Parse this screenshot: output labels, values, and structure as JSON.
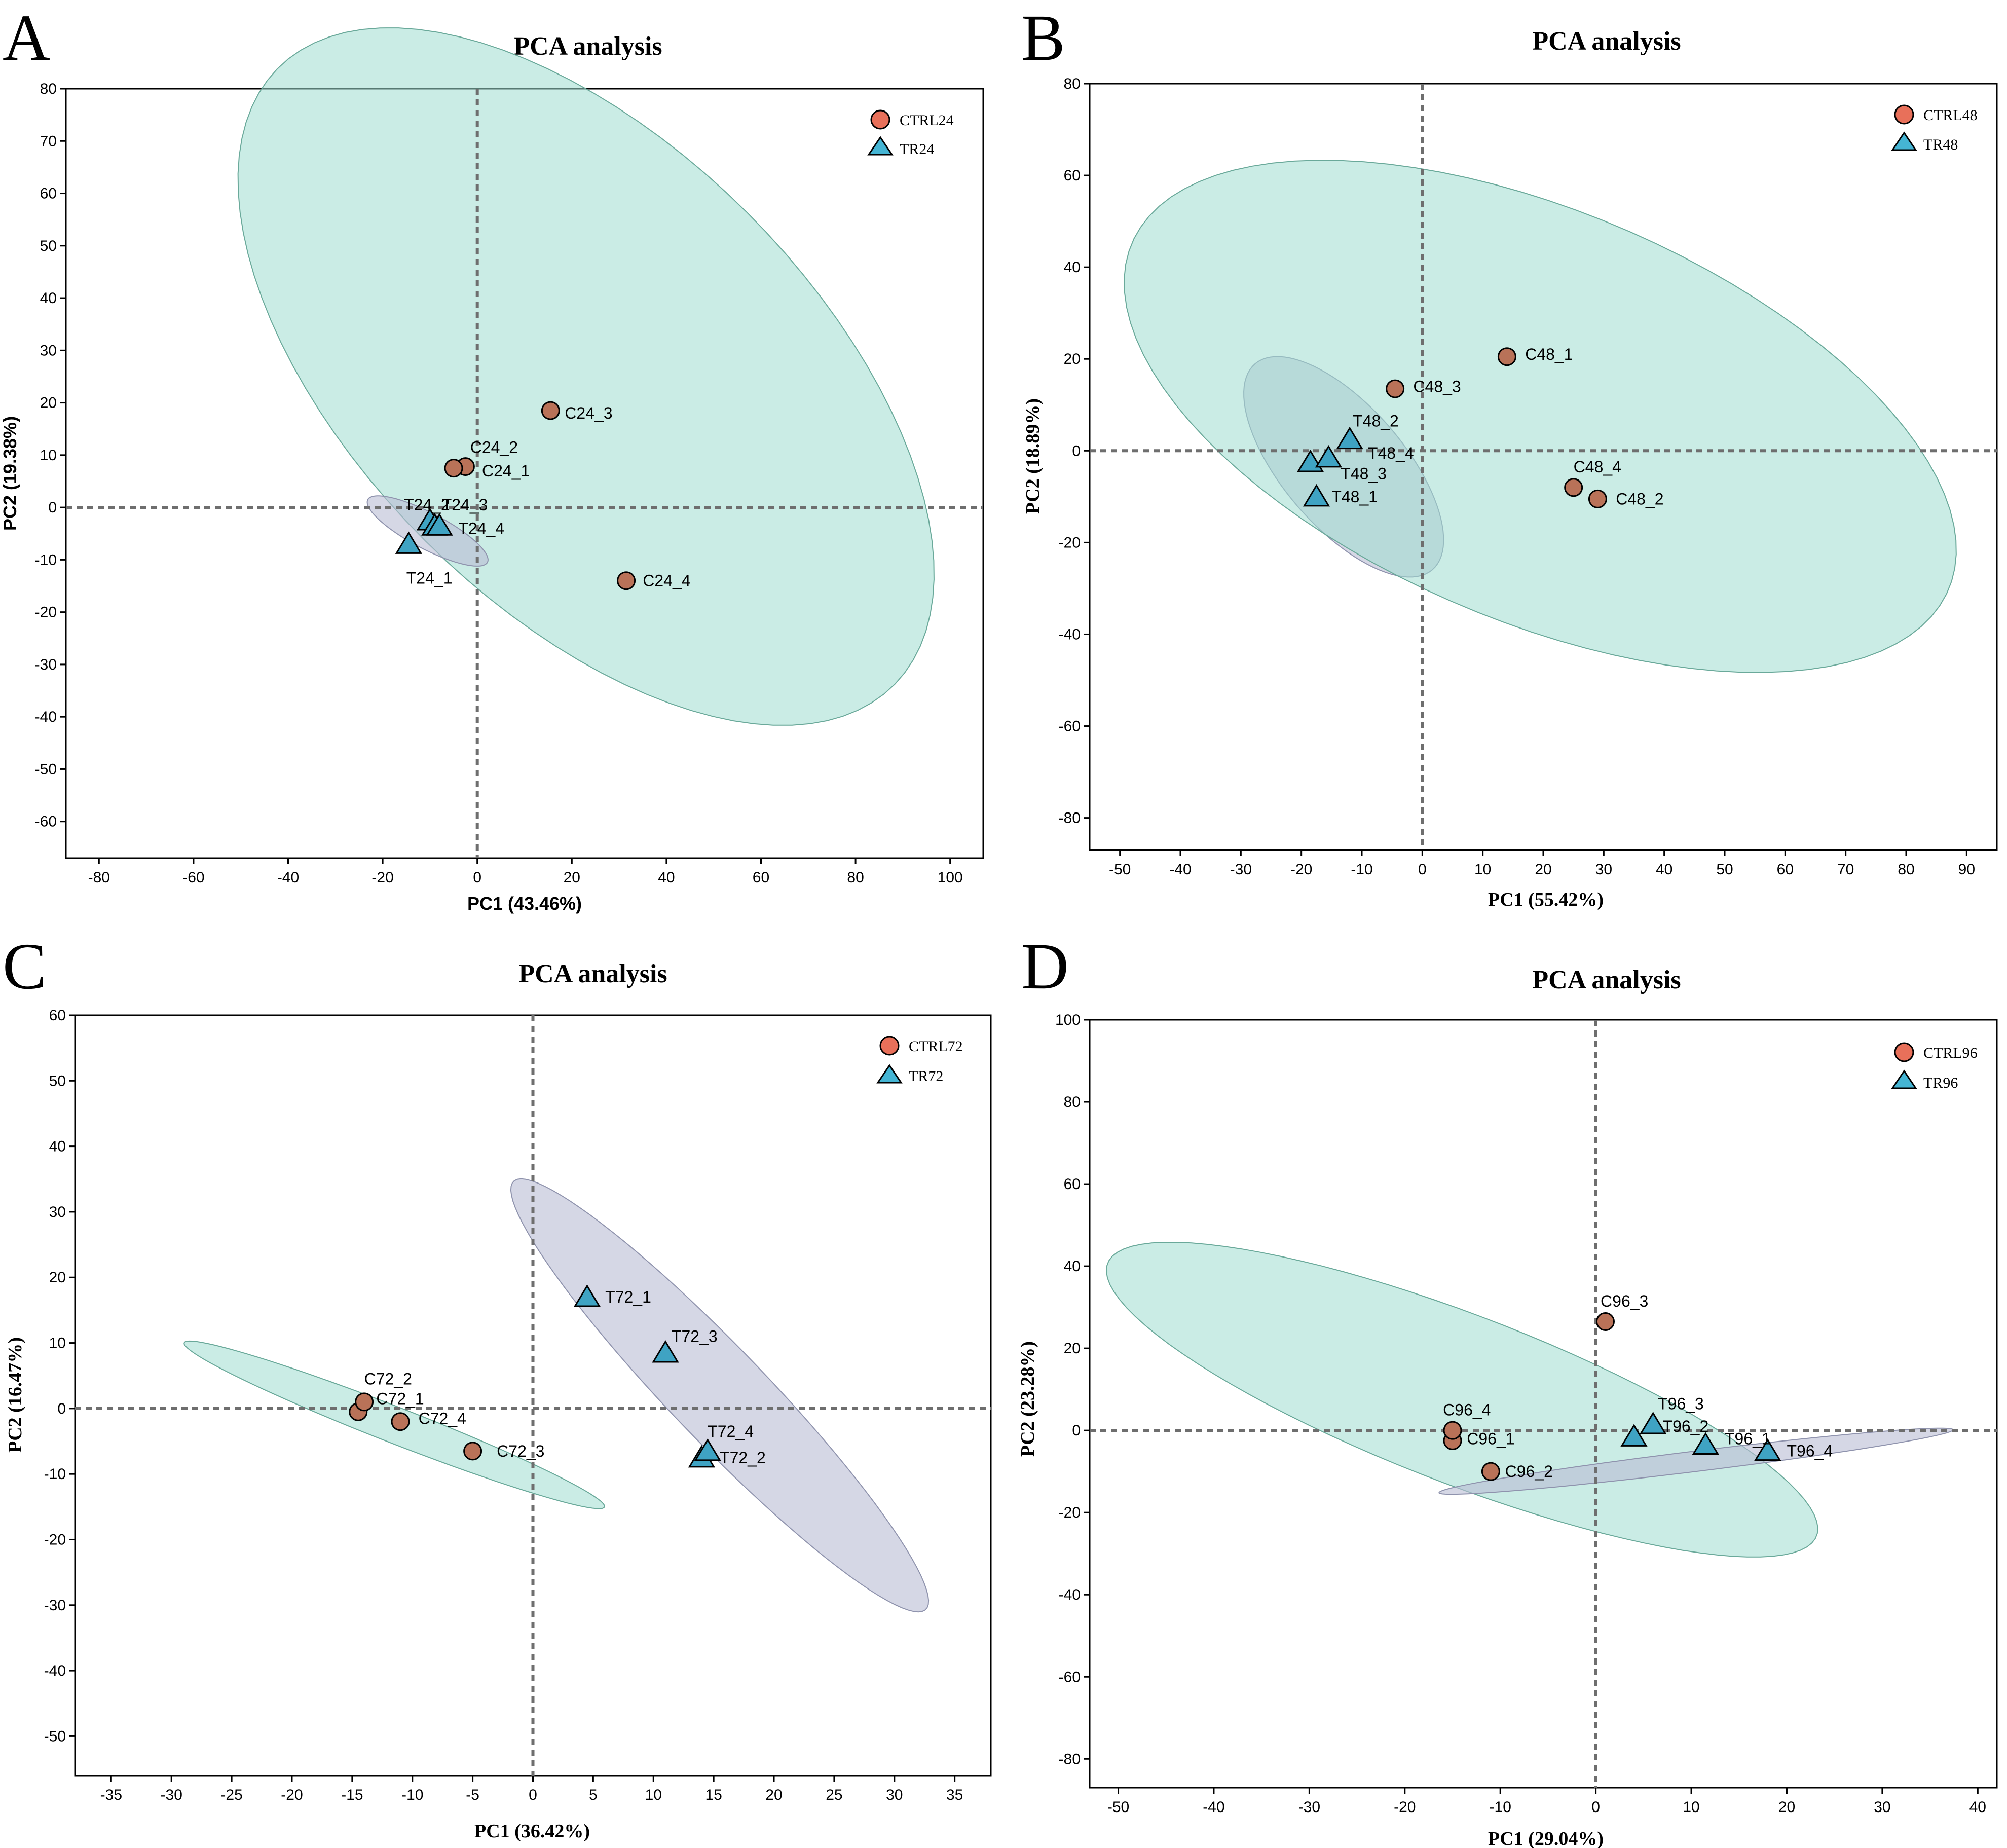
{
  "colors": {
    "ctrl_point": "#b97258",
    "tr_point": "#3fa3c3",
    "legend_ctrl": "#e8705a",
    "legend_tr": "#45b5d4",
    "ctrl_ellipse": "#9fdccf",
    "tr_ellipse": "#b9bcd3"
  },
  "chart_data": [
    {
      "panel": "A",
      "type": "scatter",
      "title": "PCA analysis",
      "xlabel": "PC1 (43.46%)",
      "ylabel": "PC2 (19.38%)",
      "xlim": [
        -87,
        107
      ],
      "ylim": [
        -67,
        80
      ],
      "xticks": [
        -80,
        -60,
        -40,
        -20,
        0,
        20,
        40,
        60,
        80,
        100
      ],
      "yticks": [
        80,
        70,
        60,
        50,
        40,
        30,
        20,
        10,
        0,
        -10,
        -20,
        -30,
        -40,
        -50,
        -60
      ],
      "legend": "top-right",
      "series": [
        {
          "name": "CTRL24",
          "marker": "circle",
          "points": [
            {
              "label": "C24_1",
              "x": -2.5,
              "y": 7.8
            },
            {
              "label": "C24_2",
              "x": -5,
              "y": 7.5
            },
            {
              "label": "C24_3",
              "x": 15.5,
              "y": 18.5
            },
            {
              "label": "C24_4",
              "x": 31.5,
              "y": -14
            }
          ]
        },
        {
          "name": "TR24",
          "marker": "triangle",
          "points": [
            {
              "label": "T24_1",
              "x": -14.5,
              "y": -7
            },
            {
              "label": "T24_2",
              "x": -10,
              "y": -2.5
            },
            {
              "label": "T24_3",
              "x": -9,
              "y": -3.5
            },
            {
              "label": "T24_4",
              "x": -8,
              "y": -3.5
            }
          ]
        }
      ],
      "ellipses": [
        {
          "group": "CTRL24",
          "cx": 23,
          "cy": 25,
          "rx": 88,
          "ry": 46,
          "angle_deg": -40
        },
        {
          "group": "TR24",
          "cx": -10.5,
          "cy": -4.5,
          "rx": 14,
          "ry": 3.5,
          "angle_deg": -25
        }
      ],
      "annotations": [
        {
          "text": "C24_1",
          "x": 1,
          "y": 7
        },
        {
          "text": "C24_2",
          "x": -1.5,
          "y": 11.5
        },
        {
          "text": "C24_3",
          "x": 18.5,
          "y": 18
        },
        {
          "text": "C24_4",
          "x": 35,
          "y": -14
        },
        {
          "text": "T24_1",
          "x": -15,
          "y": -13.5
        },
        {
          "text": "T24_2",
          "x": -15.5,
          "y": 0.5
        },
        {
          "text": "T24_3",
          "x": -7.5,
          "y": 0.5
        },
        {
          "text": "T24_4",
          "x": -4,
          "y": -4
        }
      ]
    },
    {
      "panel": "B",
      "type": "scatter",
      "title": "PCA analysis",
      "xlabel": "PC1 (55.42%)",
      "ylabel": "PC2 (18.89%)",
      "xlim": [
        -55,
        95
      ],
      "ylim": [
        -87,
        80
      ],
      "xticks": [
        -50,
        -40,
        -30,
        -20,
        -10,
        0,
        10,
        20,
        30,
        40,
        50,
        60,
        70,
        80,
        90
      ],
      "yticks": [
        80,
        60,
        40,
        20,
        0,
        -20,
        -40,
        -60,
        -80
      ],
      "legend": "top-right",
      "series": [
        {
          "name": "CTRL48",
          "marker": "circle",
          "points": [
            {
              "label": "C48_1",
              "x": 14,
              "y": 20.5
            },
            {
              "label": "C48_2",
              "x": 29,
              "y": -10.5
            },
            {
              "label": "C48_3",
              "x": -4.5,
              "y": 13.5
            },
            {
              "label": "C48_4",
              "x": 25,
              "y": -8
            }
          ]
        },
        {
          "name": "TR48",
          "marker": "triangle",
          "points": [
            {
              "label": "T48_1",
              "x": -17.5,
              "y": -10
            },
            {
              "label": "T48_2",
              "x": -12,
              "y": 2.5
            },
            {
              "label": "T48_3",
              "x": -18.5,
              "y": -2.5
            },
            {
              "label": "T48_4",
              "x": -15.5,
              "y": -1.5
            }
          ]
        }
      ],
      "ellipses": [
        {
          "group": "TR48",
          "cx": -13,
          "cy": -3.5,
          "rx": 27,
          "ry": 11,
          "angle_deg": -60
        },
        {
          "group": "CTRL48",
          "cx": 19.5,
          "cy": 7.5,
          "rx": 78,
          "ry": 42,
          "angle_deg": -34
        }
      ],
      "annotations": [
        {
          "text": "C48_1",
          "x": 17,
          "y": 21
        },
        {
          "text": "C48_2",
          "x": 32,
          "y": -10.5
        },
        {
          "text": "C48_3",
          "x": -1.5,
          "y": 14
        },
        {
          "text": "C48_4",
          "x": 25,
          "y": -3.5
        },
        {
          "text": "T48_1",
          "x": -15,
          "y": -10
        },
        {
          "text": "T48_2",
          "x": -11.5,
          "y": 6.5
        },
        {
          "text": "T48_3",
          "x": -13.5,
          "y": -5
        },
        {
          "text": "T48_4",
          "x": -9,
          "y": -0.5
        }
      ]
    },
    {
      "panel": "C",
      "type": "scatter",
      "title": "PCA analysis",
      "xlabel": "PC1 (36.42%)",
      "ylabel": "PC2 (16.47%)",
      "xlim": [
        -38,
        38
      ],
      "ylim": [
        -56,
        60
      ],
      "xticks": [
        -35,
        -30,
        -25,
        -20,
        -15,
        -10,
        -5,
        0,
        5,
        10,
        15,
        20,
        25,
        30,
        35
      ],
      "yticks": [
        60,
        50,
        40,
        30,
        20,
        10,
        0,
        -10,
        -20,
        -30,
        -40,
        -50
      ],
      "legend": "top-right",
      "series": [
        {
          "name": "CTRL72",
          "marker": "circle",
          "points": [
            {
              "label": "C72_1",
              "x": -14.5,
              "y": -0.5
            },
            {
              "label": "C72_2",
              "x": -14,
              "y": 1
            },
            {
              "label": "C72_3",
              "x": -5,
              "y": -6.5
            },
            {
              "label": "C72_4",
              "x": -11,
              "y": -2
            }
          ]
        },
        {
          "name": "TR72",
          "marker": "triangle",
          "points": [
            {
              "label": "T72_1",
              "x": 4.5,
              "y": 17
            },
            {
              "label": "T72_2",
              "x": 14,
              "y": -7.5
            },
            {
              "label": "T72_3",
              "x": 11,
              "y": 8.5
            },
            {
              "label": "T72_4",
              "x": 14.5,
              "y": -6.5
            }
          ]
        }
      ],
      "ellipses": [
        {
          "group": "CTRL72",
          "cx": -11.5,
          "cy": -2.5,
          "rx": 21.5,
          "ry": 2.4,
          "angle_deg": -36
        },
        {
          "group": "TR72",
          "cx": 15.5,
          "cy": 2,
          "rx": 37,
          "ry": 4.8,
          "angle_deg": -63
        }
      ],
      "annotations": [
        {
          "text": "C72_1",
          "x": -13,
          "y": 1.5
        },
        {
          "text": "C72_2",
          "x": -14,
          "y": 4.5
        },
        {
          "text": "C72_3",
          "x": -3,
          "y": -6.5
        },
        {
          "text": "C72_4",
          "x": -9.5,
          "y": -1.5
        },
        {
          "text": "T72_1",
          "x": 6,
          "y": 17
        },
        {
          "text": "T72_2",
          "x": 15.5,
          "y": -7.5
        },
        {
          "text": "T72_3",
          "x": 11.5,
          "y": 11
        },
        {
          "text": "T72_4",
          "x": 14.5,
          "y": -3.5
        }
      ]
    },
    {
      "panel": "D",
      "type": "scatter",
      "title": "PCA analysis",
      "xlabel": "PC1 (29.04%)",
      "ylabel": "PC2 (23.28%)",
      "xlim": [
        -53,
        42
      ],
      "ylim": [
        -87,
        100
      ],
      "xticks": [
        -50,
        -40,
        -30,
        -20,
        -10,
        0,
        10,
        20,
        30,
        40
      ],
      "yticks": [
        100,
        80,
        60,
        40,
        20,
        0,
        -20,
        -40,
        -60,
        -80
      ],
      "legend": "top-right",
      "series": [
        {
          "name": "CTRL96",
          "marker": "circle",
          "points": [
            {
              "label": "C96_1",
              "x": -15,
              "y": -2.5
            },
            {
              "label": "C96_2",
              "x": -11,
              "y": -10
            },
            {
              "label": "C96_3",
              "x": 1,
              "y": 26.5
            },
            {
              "label": "C96_4",
              "x": -15,
              "y": 0
            }
          ]
        },
        {
          "name": "TR96",
          "marker": "triangle",
          "points": [
            {
              "label": "T96_1",
              "x": 11.5,
              "y": -3.5
            },
            {
              "label": "T96_2",
              "x": 4,
              "y": -1.5
            },
            {
              "label": "T96_3",
              "x": 6,
              "y": 1.5
            },
            {
              "label": "T96_4",
              "x": 18,
              "y": -5
            }
          ]
        }
      ],
      "ellipses": [
        {
          "group": "CTRL96",
          "cx": -14,
          "cy": 7.5,
          "rx": 51,
          "ry": 16,
          "angle_deg": -46
        },
        {
          "group": "TR96",
          "cx": 10.5,
          "cy": -7.5,
          "rx": 28,
          "ry": 2.4,
          "angle_deg": 16
        }
      ],
      "annotations": [
        {
          "text": "C96_1",
          "x": -13.5,
          "y": -2
        },
        {
          "text": "C96_2",
          "x": -9.5,
          "y": -10
        },
        {
          "text": "C96_3",
          "x": 0.5,
          "y": 31.5
        },
        {
          "text": "C96_4",
          "x": -16,
          "y": 5
        },
        {
          "text": "T96_1",
          "x": 13.5,
          "y": -2
        },
        {
          "text": "T96_2",
          "x": 7,
          "y": 1
        },
        {
          "text": "T96_3",
          "x": 6.5,
          "y": 6.5
        },
        {
          "text": "T96_4",
          "x": 20,
          "y": -5
        }
      ]
    }
  ]
}
